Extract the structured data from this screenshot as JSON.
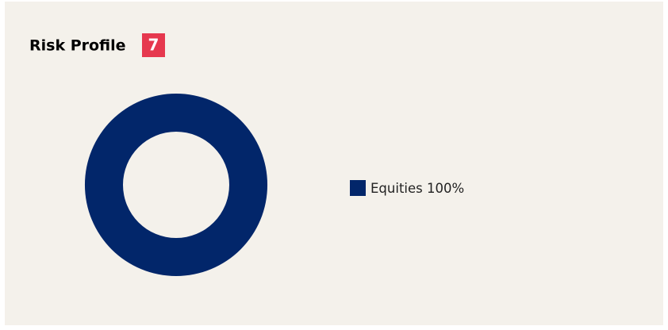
{
  "chart_data": {
    "type": "donut",
    "title": "Risk Profile",
    "badge": 7,
    "categories": [
      "Equities"
    ],
    "values": [
      100
    ],
    "value_labels": [
      "100%"
    ],
    "colors": [
      "#02266a"
    ],
    "legend": "right"
  }
}
